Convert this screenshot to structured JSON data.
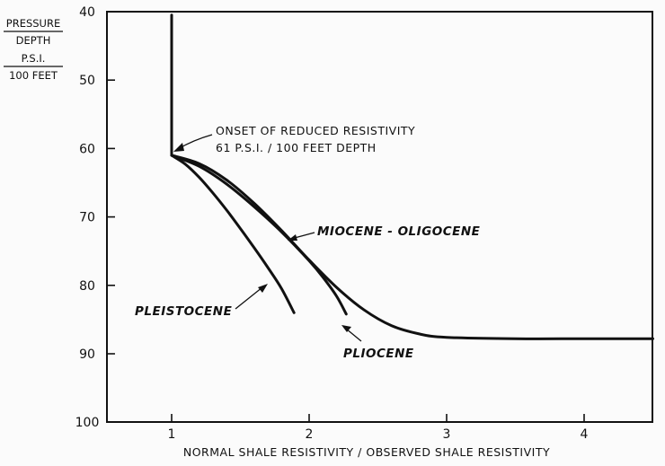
{
  "chart_data": {
    "type": "line",
    "title": "",
    "xlabel": "NORMAL SHALE RESISTIVITY / OBSERVED SHALE RESISTIVITY",
    "ylabel_lines": [
      "PRESSURE",
      "DEPTH",
      "P.S.I.",
      "100 FEET"
    ],
    "x_ticks": [
      1,
      2,
      3,
      4
    ],
    "y_ticks": [
      40,
      50,
      60,
      70,
      80,
      90,
      100
    ],
    "xlim": [
      0.5,
      4.5
    ],
    "ylim": [
      40,
      100
    ],
    "y_inverted": true,
    "grid": false,
    "annotation": {
      "lines": [
        "ONSET OF REDUCED RESISTIVITY",
        "61 P.S.I. / 100 FEET DEPTH"
      ],
      "x": 1.0,
      "y": 61
    },
    "trunk": {
      "x": [
        1.0,
        1.0
      ],
      "y": [
        40.5,
        61
      ]
    },
    "series": [
      {
        "name": "PLEISTOCENE",
        "x": [
          1.0,
          1.1,
          1.2,
          1.3,
          1.4,
          1.5,
          1.6,
          1.7,
          1.8,
          1.89
        ],
        "y": [
          61,
          62.3,
          64.2,
          66.5,
          69.0,
          71.7,
          74.5,
          77.4,
          80.5,
          84.0
        ]
      },
      {
        "name": "PLIOCENE",
        "x": [
          1.0,
          1.2,
          1.4,
          1.6,
          1.8,
          2.0,
          2.1,
          2.2,
          2.27
        ],
        "y": [
          61,
          62.6,
          65.2,
          68.5,
          72.2,
          76.4,
          78.8,
          81.6,
          84.2
        ]
      },
      {
        "name": "MIOCENE - OLIGOCENE",
        "x": [
          1.0,
          1.2,
          1.4,
          1.6,
          1.8,
          2.0,
          2.2,
          2.4,
          2.6,
          2.8,
          3.0,
          3.5,
          4.0,
          4.5
        ],
        "y": [
          61,
          62.2,
          64.6,
          68.0,
          72.0,
          76.3,
          80.3,
          83.6,
          85.9,
          87.1,
          87.6,
          87.8,
          87.8,
          87.8
        ]
      }
    ]
  }
}
